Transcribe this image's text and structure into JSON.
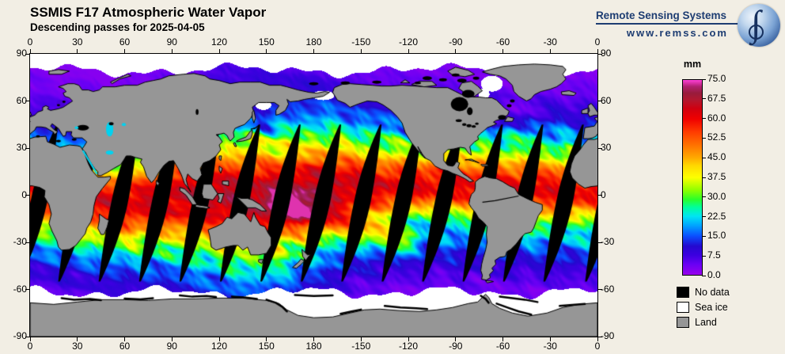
{
  "page": {
    "background_color": "#f2eee4"
  },
  "header": {
    "title": "SSMIS F17 Atmospheric Water Vapor",
    "subtitle": "Descending passes for 2025-04-05"
  },
  "logo": {
    "name": "Remote Sensing Systems",
    "url": "www.remss.com",
    "text_color": "#1e3d72"
  },
  "map": {
    "lon_tick_labels": [
      "0",
      "30",
      "60",
      "90",
      "120",
      "150",
      "180",
      "-150",
      "-120",
      "-90",
      "-60",
      "-30",
      "0"
    ],
    "lat_tick_labels": [
      "90",
      "60",
      "30",
      "0",
      "-30",
      "-60",
      "-90"
    ],
    "land_color": "#969696",
    "sea_ice_color": "#ffffff",
    "no_data_color": "#000000",
    "coast_color": "#000000",
    "frame_color": "#000000"
  },
  "colorbar": {
    "unit": "mm",
    "min": 0,
    "max": 75,
    "tick_labels": [
      "75.0",
      "67.5",
      "60.0",
      "52.5",
      "45.0",
      "37.5",
      "30.0",
      "22.5",
      "15.0",
      "7.5",
      "0.0"
    ],
    "stops": [
      {
        "v": 0,
        "c": "#9900ee"
      },
      {
        "v": 4,
        "c": "#6a00f4"
      },
      {
        "v": 7.5,
        "c": "#3c00e0"
      },
      {
        "v": 11,
        "c": "#2408cf"
      },
      {
        "v": 15,
        "c": "#0a50ff"
      },
      {
        "v": 19,
        "c": "#00a4ff"
      },
      {
        "v": 22.5,
        "c": "#00e4f4"
      },
      {
        "v": 26,
        "c": "#00ff9c"
      },
      {
        "v": 29,
        "c": "#2aff2a"
      },
      {
        "v": 32.5,
        "c": "#8cff00"
      },
      {
        "v": 37.5,
        "c": "#fdff00"
      },
      {
        "v": 42,
        "c": "#ffd800"
      },
      {
        "v": 45,
        "c": "#ffaa00"
      },
      {
        "v": 50,
        "c": "#ff7100"
      },
      {
        "v": 55,
        "c": "#ff3c00"
      },
      {
        "v": 60,
        "c": "#f00000"
      },
      {
        "v": 64,
        "c": "#d00010"
      },
      {
        "v": 67.5,
        "c": "#b01830"
      },
      {
        "v": 70,
        "c": "#981c3c"
      },
      {
        "v": 72.5,
        "c": "#b02070"
      },
      {
        "v": 75,
        "c": "#ff40d8"
      }
    ]
  },
  "legend": {
    "items": [
      {
        "label": "No data",
        "color": "#000000"
      },
      {
        "label": "Sea ice",
        "color": "#ffffff"
      },
      {
        "label": "Land",
        "color": "#969696"
      }
    ]
  }
}
